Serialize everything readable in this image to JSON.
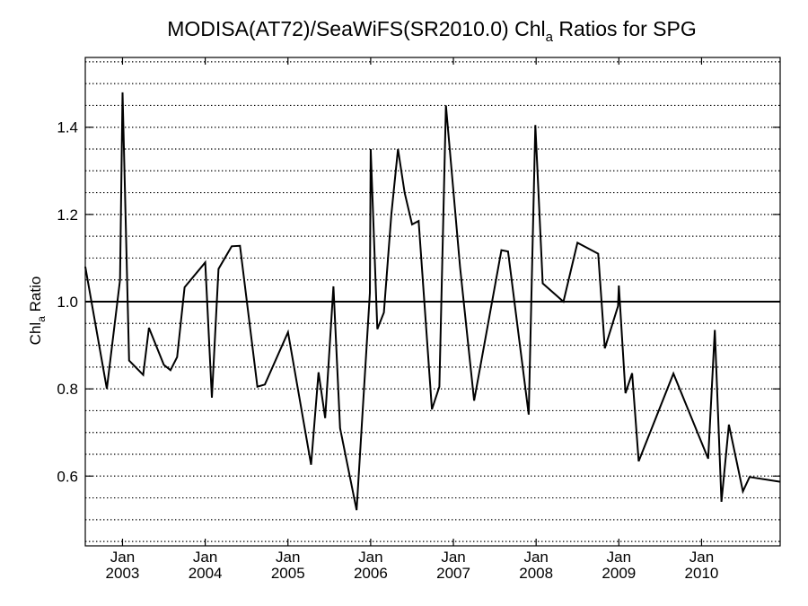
{
  "chart_data": {
    "type": "line",
    "title": {
      "main": "MODISA(AT72)/SeaWiFS(SR2010.0)  Chl",
      "subscript": "a",
      "suffix": " Ratios for SPG"
    },
    "ylabel": {
      "main": "Chl",
      "subscript": "a",
      "suffix": " Ratio"
    },
    "xlabel": "",
    "xlim": [
      2002.55,
      2010.95
    ],
    "ylim": [
      0.44,
      1.56
    ],
    "y_ticks": [
      0.6,
      0.8,
      1.0,
      1.2,
      1.4
    ],
    "y_tick_labels": [
      "0.6",
      "0.8",
      "1.0",
      "1.2",
      "1.4"
    ],
    "y_dotted_gridlines": [
      0.45,
      0.5,
      0.55,
      0.6,
      0.65,
      0.7,
      0.75,
      0.8,
      0.85,
      0.9,
      0.95,
      1.05,
      1.1,
      1.15,
      1.2,
      1.25,
      1.3,
      1.35,
      1.4,
      1.45,
      1.5,
      1.55
    ],
    "reference_line": 1.0,
    "x_ticks": [
      {
        "x": 2003.0,
        "month": "Jan",
        "year": "2003"
      },
      {
        "x": 2004.0,
        "month": "Jan",
        "year": "2004"
      },
      {
        "x": 2005.0,
        "month": "Jan",
        "year": "2005"
      },
      {
        "x": 2006.0,
        "month": "Jan",
        "year": "2006"
      },
      {
        "x": 2007.0,
        "month": "Jan",
        "year": "2007"
      },
      {
        "x": 2008.0,
        "month": "Jan",
        "year": "2008"
      },
      {
        "x": 2009.0,
        "month": "Jan",
        "year": "2009"
      },
      {
        "x": 2010.0,
        "month": "Jan",
        "year": "2010"
      }
    ],
    "grid": "horizontal-dotted",
    "legend": "none",
    "line_color": "#000000",
    "series": [
      {
        "x": [
          2002.55,
          2002.81,
          2002.97,
          2003.0,
          2003.08,
          2003.25,
          2003.32,
          2003.5,
          2003.58,
          2003.66,
          2003.75,
          2004.0,
          2004.08,
          2004.16,
          2004.32,
          2004.42,
          2004.63,
          2004.72,
          2005.0,
          2005.28,
          2005.37,
          2005.45,
          2005.55,
          2005.63,
          2005.83,
          2005.99,
          2006.0,
          2006.08,
          2006.16,
          2006.25,
          2006.33,
          2006.41,
          2006.5,
          2006.58,
          2006.74,
          2006.83,
          2006.91,
          2007.08,
          2007.25,
          2007.58,
          2007.66,
          2007.91,
          2007.99,
          2008.08,
          2008.33,
          2008.5,
          2008.75,
          2008.83,
          2008.99,
          2009.0,
          2009.08,
          2009.16,
          2009.24,
          2009.66,
          2010.08,
          2010.16,
          2010.24,
          2010.33,
          2010.5,
          2010.58,
          2010.95
        ],
        "values": [
          1.08,
          0.8,
          1.05,
          1.48,
          0.865,
          0.832,
          0.94,
          0.855,
          0.843,
          0.873,
          1.033,
          1.09,
          0.78,
          1.075,
          1.127,
          1.128,
          0.805,
          0.81,
          0.93,
          0.626,
          0.838,
          0.733,
          1.035,
          0.71,
          0.522,
          1.02,
          1.35,
          0.937,
          0.975,
          1.2,
          1.35,
          1.25,
          1.177,
          1.185,
          0.753,
          0.805,
          1.45,
          1.08,
          0.773,
          1.118,
          1.115,
          0.741,
          1.405,
          1.042,
          1.0,
          1.135,
          1.11,
          0.893,
          0.99,
          1.037,
          0.79,
          0.836,
          0.634,
          0.835,
          0.64,
          0.935,
          0.541,
          0.718,
          0.565,
          0.598,
          0.587
        ]
      }
    ]
  }
}
